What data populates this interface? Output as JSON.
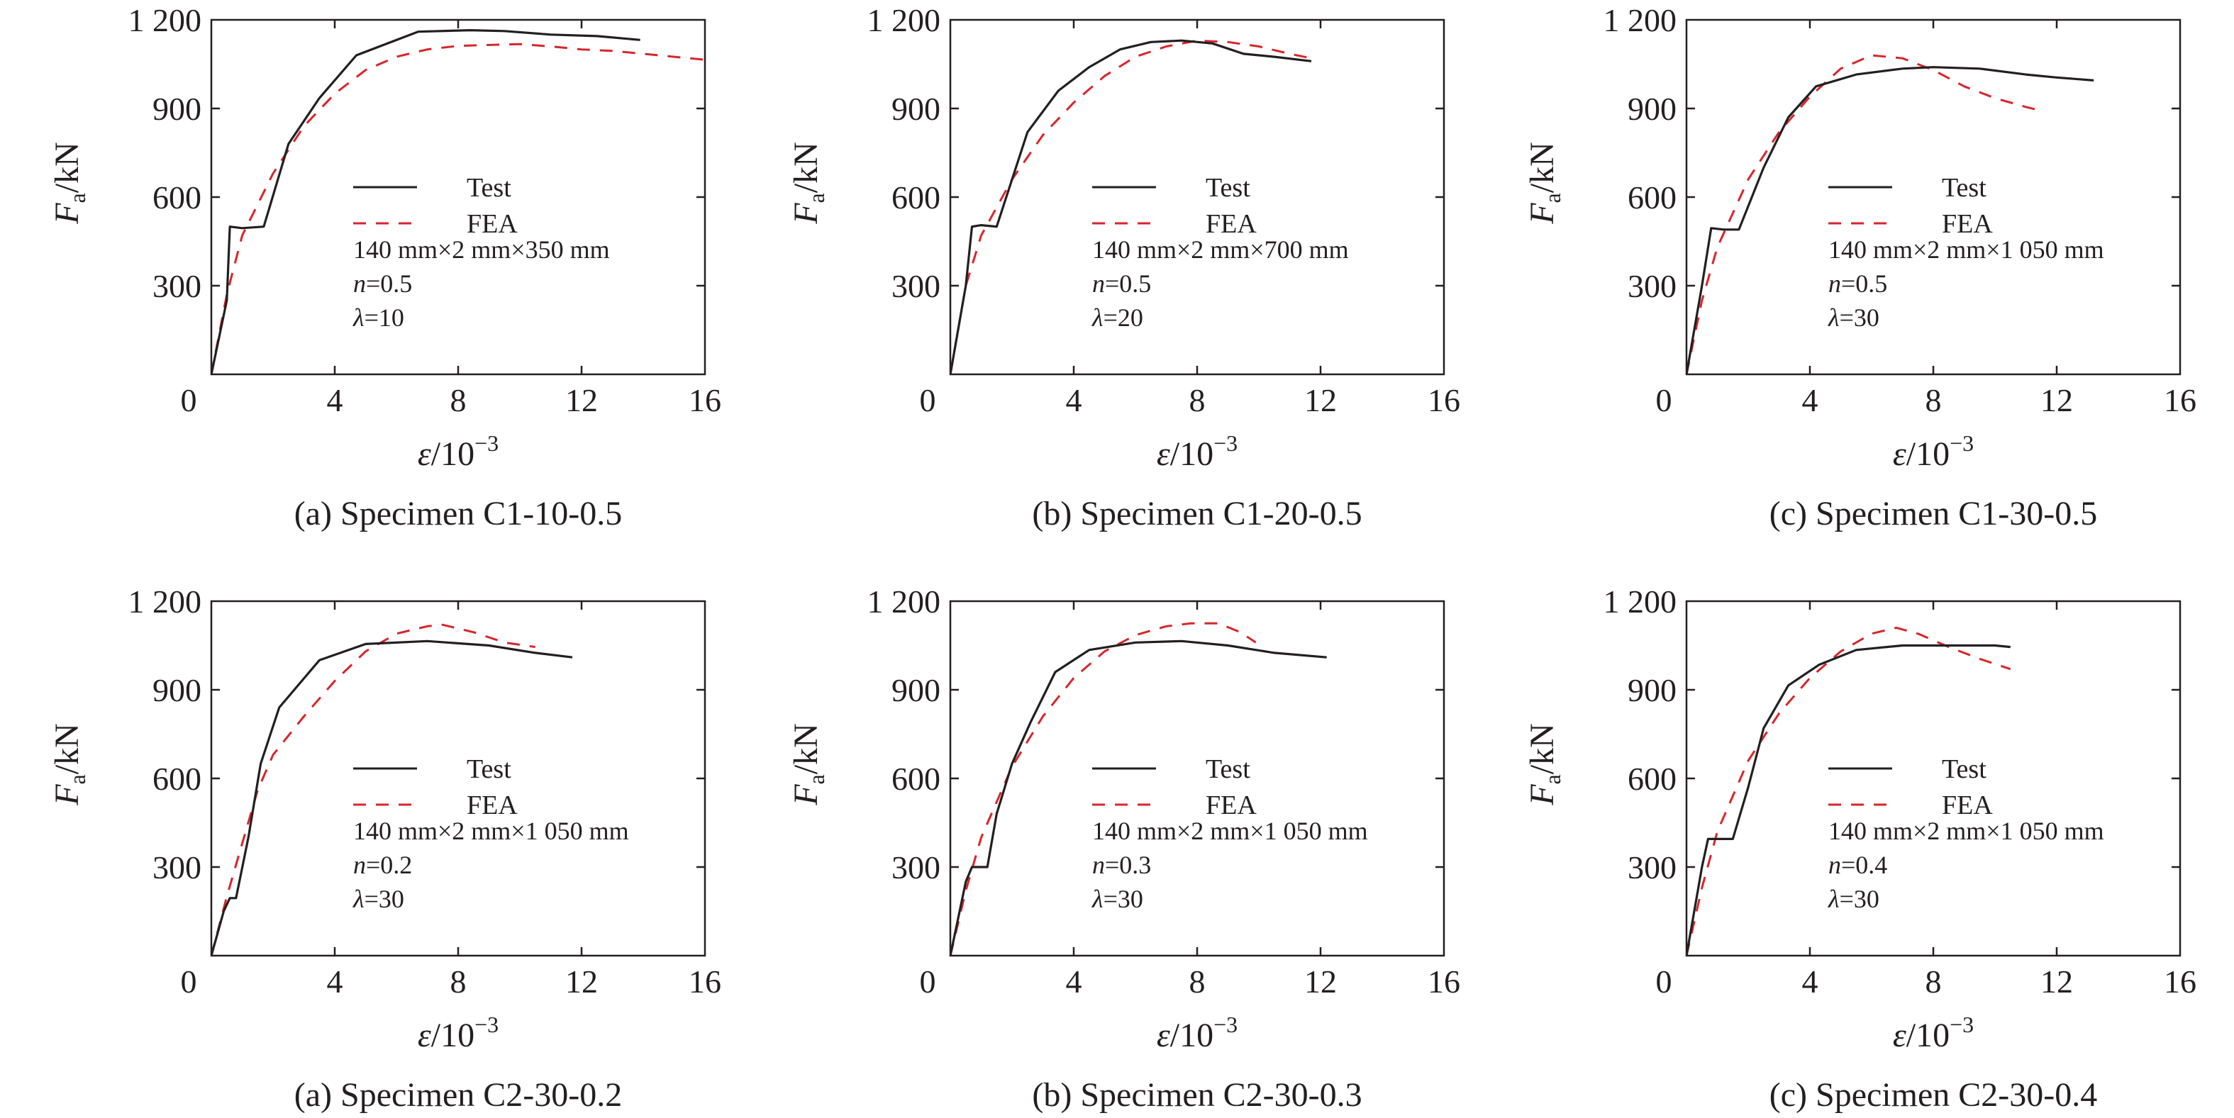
{
  "chart_data": [
    {
      "type": "line",
      "caption": "(a) Specimen C1-10-0.5",
      "xlabel": {
        "symbol": "ε",
        "unit": "/10",
        "exp": "−3"
      },
      "ylabel": {
        "symbol": "F",
        "sub": "a",
        "unit": "/kN"
      },
      "xlim": [
        0,
        16
      ],
      "ylim": [
        0,
        1200
      ],
      "xticks": [
        "0",
        "4",
        "8",
        "12",
        "16"
      ],
      "yticks": [
        "300",
        "600",
        "900",
        "1 200"
      ],
      "grid": false,
      "legend_position": "center",
      "series": [
        {
          "name": "Test",
          "color": "#231f20",
          "dash": "solid",
          "x": [
            0,
            0.5,
            0.6,
            1.0,
            1.7,
            2.5,
            3.5,
            4.7,
            6.7,
            8.4,
            9.5,
            11.0,
            12.5,
            13.9
          ],
          "y": [
            0,
            250,
            500,
            495,
            500,
            780,
            935,
            1080,
            1160,
            1165,
            1162,
            1150,
            1145,
            1132
          ]
        },
        {
          "name": "FEA",
          "color": "#d7262b",
          "dash": "dashed",
          "x": [
            0,
            0.5,
            1.0,
            2.0,
            3.0,
            4.0,
            5.0,
            6.0,
            7.0,
            8.0,
            9.0,
            10.0,
            11.0,
            12.0,
            13.0,
            14.0,
            15.0,
            16.0
          ],
          "y": [
            0,
            270,
            470,
            680,
            840,
            950,
            1030,
            1075,
            1100,
            1112,
            1115,
            1118,
            1110,
            1100,
            1095,
            1085,
            1075,
            1065
          ]
        }
      ],
      "annotations": [
        "140 mm×2 mm×350 mm",
        "n=0.5",
        "λ=10"
      ]
    },
    {
      "type": "line",
      "caption": "(b) Specimen C1-20-0.5",
      "xlabel": {
        "symbol": "ε",
        "unit": "/10",
        "exp": "−3"
      },
      "ylabel": {
        "symbol": "F",
        "sub": "a",
        "unit": "/kN"
      },
      "xlim": [
        0,
        16
      ],
      "ylim": [
        0,
        1200
      ],
      "xticks": [
        "0",
        "4",
        "8",
        "12",
        "16"
      ],
      "yticks": [
        "300",
        "600",
        "900",
        "1 200"
      ],
      "grid": false,
      "legend_position": "center",
      "series": [
        {
          "name": "Test",
          "color": "#231f20",
          "dash": "solid",
          "x": [
            0,
            0.5,
            0.7,
            1.0,
            1.5,
            2.5,
            3.5,
            4.5,
            5.5,
            6.5,
            7.5,
            8.5,
            9.5,
            10.5,
            11.7
          ],
          "y": [
            0,
            300,
            500,
            505,
            500,
            820,
            960,
            1040,
            1100,
            1125,
            1130,
            1120,
            1085,
            1075,
            1060
          ]
        },
        {
          "name": "FEA",
          "color": "#d7262b",
          "dash": "dashed",
          "x": [
            0,
            0.5,
            1.0,
            2.0,
            3.0,
            4.0,
            5.0,
            6.0,
            7.0,
            8.0,
            9.0,
            10.0,
            11.0,
            11.7
          ],
          "y": [
            0,
            300,
            470,
            660,
            810,
            920,
            1010,
            1075,
            1110,
            1130,
            1125,
            1110,
            1085,
            1070
          ]
        }
      ],
      "annotations": [
        "140 mm×2 mm×700 mm",
        "n=0.5",
        "λ=20"
      ]
    },
    {
      "type": "line",
      "caption": "(c) Specimen C1-30-0.5",
      "xlabel": {
        "symbol": "ε",
        "unit": "/10",
        "exp": "−3"
      },
      "ylabel": {
        "symbol": "F",
        "sub": "a",
        "unit": "/kN"
      },
      "xlim": [
        0,
        16
      ],
      "ylim": [
        0,
        1200
      ],
      "xticks": [
        "0",
        "4",
        "8",
        "12",
        "16"
      ],
      "yticks": [
        "300",
        "600",
        "900",
        "1 200"
      ],
      "grid": false,
      "legend_position": "center",
      "series": [
        {
          "name": "Test",
          "color": "#231f20",
          "dash": "solid",
          "x": [
            0,
            0.5,
            0.8,
            1.2,
            1.7,
            2.5,
            3.3,
            4.2,
            5.5,
            7.0,
            8.0,
            9.5,
            11.0,
            12.0,
            13.2
          ],
          "y": [
            0,
            300,
            495,
            490,
            490,
            700,
            870,
            975,
            1015,
            1035,
            1040,
            1035,
            1015,
            1005,
            995
          ]
        },
        {
          "name": "FEA",
          "color": "#d7262b",
          "dash": "dashed",
          "x": [
            0,
            0.5,
            1.0,
            2.0,
            3.0,
            4.0,
            5.0,
            6.0,
            7.0,
            8.0,
            9.0,
            10.0,
            11.0,
            11.6
          ],
          "y": [
            0,
            250,
            430,
            660,
            820,
            940,
            1035,
            1080,
            1070,
            1030,
            975,
            935,
            905,
            890
          ]
        }
      ],
      "annotations": [
        "140 mm×2 mm×1 050 mm",
        "n=0.5",
        "λ=30"
      ]
    },
    {
      "type": "line",
      "caption": "(a) Specimen C2-30-0.2",
      "xlabel": {
        "symbol": "ε",
        "unit": "/10",
        "exp": "−3"
      },
      "ylabel": {
        "symbol": "F",
        "sub": "a",
        "unit": "/kN"
      },
      "xlim": [
        0,
        16
      ],
      "ylim": [
        0,
        1200
      ],
      "xticks": [
        "0",
        "4",
        "8",
        "12",
        "16"
      ],
      "yticks": [
        "300",
        "600",
        "900",
        "1 200"
      ],
      "grid": false,
      "legend_position": "center",
      "series": [
        {
          "name": "Test",
          "color": "#231f20",
          "dash": "solid",
          "x": [
            0,
            0.4,
            0.6,
            0.8,
            1.2,
            1.6,
            2.2,
            3.5,
            5.0,
            7.0,
            9.0,
            10.5,
            11.7
          ],
          "y": [
            0,
            150,
            195,
            195,
            400,
            650,
            840,
            1000,
            1055,
            1065,
            1050,
            1025,
            1010
          ]
        },
        {
          "name": "FEA",
          "color": "#d7262b",
          "dash": "dashed",
          "x": [
            0,
            0.5,
            1.0,
            1.5,
            2.0,
            3.0,
            4.0,
            5.0,
            6.0,
            7.0,
            7.5,
            8.5,
            9.5,
            10.5
          ],
          "y": [
            0,
            200,
            380,
            560,
            680,
            810,
            930,
            1030,
            1090,
            1115,
            1120,
            1095,
            1060,
            1045
          ]
        }
      ],
      "annotations": [
        "140 mm×2 mm×1 050 mm",
        "n=0.2",
        "λ=30"
      ]
    },
    {
      "type": "line",
      "caption": "(b) Specimen C2-30-0.3",
      "xlabel": {
        "symbol": "ε",
        "unit": "/10",
        "exp": "−3"
      },
      "ylabel": {
        "symbol": "F",
        "sub": "a",
        "unit": "/kN"
      },
      "xlim": [
        0,
        16
      ],
      "ylim": [
        0,
        1200
      ],
      "xticks": [
        "0",
        "4",
        "8",
        "12",
        "16"
      ],
      "yticks": [
        "300",
        "600",
        "900",
        "1 200"
      ],
      "grid": false,
      "legend_position": "center",
      "series": [
        {
          "name": "Test",
          "color": "#231f20",
          "dash": "solid",
          "x": [
            0,
            0.5,
            0.7,
            1.2,
            1.5,
            2.0,
            2.6,
            3.4,
            4.5,
            6.0,
            7.5,
            9.0,
            10.5,
            12.2
          ],
          "y": [
            0,
            250,
            300,
            300,
            480,
            650,
            790,
            960,
            1035,
            1060,
            1065,
            1050,
            1025,
            1010
          ]
        },
        {
          "name": "FEA",
          "color": "#d7262b",
          "dash": "dashed",
          "x": [
            0,
            0.5,
            1.0,
            2.0,
            3.0,
            4.0,
            5.0,
            6.0,
            7.0,
            7.8,
            8.7,
            9.4,
            9.9
          ],
          "y": [
            0,
            220,
            400,
            640,
            810,
            940,
            1030,
            1085,
            1115,
            1125,
            1125,
            1095,
            1060
          ]
        }
      ],
      "annotations": [
        "140 mm×2 mm×1 050 mm",
        "n=0.3",
        "λ=30"
      ]
    },
    {
      "type": "line",
      "caption": "(c) Specimen C2-30-0.4",
      "xlabel": {
        "symbol": "ε",
        "unit": "/10",
        "exp": "−3"
      },
      "ylabel": {
        "symbol": "F",
        "sub": "a",
        "unit": "/kN"
      },
      "xlim": [
        0,
        16
      ],
      "ylim": [
        0,
        1200
      ],
      "xticks": [
        "0",
        "4",
        "8",
        "12",
        "16"
      ],
      "yticks": [
        "300",
        "600",
        "900",
        "1 200"
      ],
      "grid": false,
      "legend_position": "center",
      "series": [
        {
          "name": "Test",
          "color": "#231f20",
          "dash": "solid",
          "x": [
            0,
            0.5,
            0.7,
            1.5,
            2.0,
            2.5,
            3.3,
            4.3,
            5.5,
            7.0,
            8.5,
            10.0,
            10.5
          ],
          "y": [
            0,
            300,
            395,
            395,
            570,
            770,
            915,
            985,
            1035,
            1050,
            1050,
            1050,
            1045
          ]
        },
        {
          "name": "FEA",
          "color": "#d7262b",
          "dash": "dashed",
          "x": [
            0,
            0.5,
            1.0,
            2.0,
            3.0,
            4.0,
            5.0,
            6.0,
            6.8,
            7.5,
            8.5,
            9.5,
            10.5
          ],
          "y": [
            0,
            230,
            420,
            660,
            820,
            940,
            1030,
            1090,
            1110,
            1090,
            1045,
            1005,
            970
          ]
        }
      ],
      "annotations": [
        "140 mm×2 mm×1 050 mm",
        "n=0.4",
        "λ=30"
      ]
    }
  ]
}
